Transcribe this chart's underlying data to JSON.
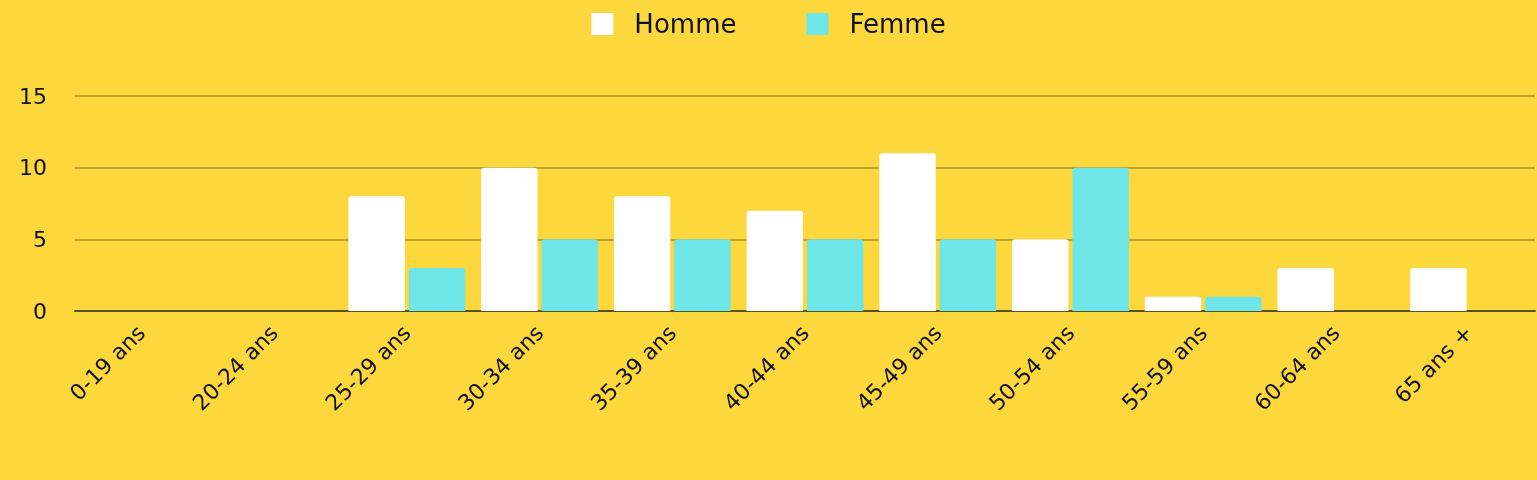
{
  "chart_data": {
    "type": "bar",
    "categories": [
      "0-19 ans",
      "20-24 ans",
      "25-29 ans",
      "30-34 ans",
      "35-39 ans",
      "40-44 ans",
      "45-49 ans",
      "50-54 ans",
      "55-59 ans",
      "60-64 ans",
      "65 ans +"
    ],
    "series": [
      {
        "name": "Homme",
        "color": "#ffffff",
        "values": [
          0,
          0,
          8,
          10,
          8,
          7,
          11,
          5,
          1,
          3,
          3
        ]
      },
      {
        "name": "Femme",
        "color": "#6ee6e8",
        "values": [
          0,
          0,
          3,
          5,
          5,
          5,
          5,
          10,
          1,
          0,
          0
        ]
      }
    ],
    "ylim": [
      0,
      15
    ],
    "yticks": [
      0,
      5,
      10,
      15
    ],
    "grid": "y",
    "legend": "top"
  }
}
